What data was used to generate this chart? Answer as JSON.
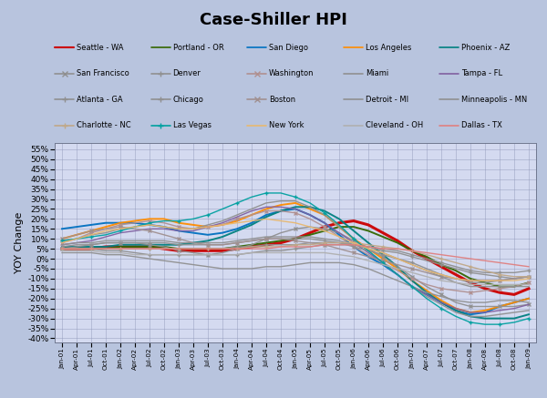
{
  "title": "Case-Shiller HPI",
  "ylabel": "YOY Change",
  "bg_color": "#b8c4de",
  "plot_bg_color": "#d4daf0",
  "x_labels": [
    "Jan-01",
    "Apr-01",
    "Jul-01",
    "Oct-01",
    "Jan-02",
    "Apr-02",
    "Jul-02",
    "Oct-02",
    "Jan-03",
    "Apr-03",
    "Jul-03",
    "Oct-03",
    "Jan-04",
    "Apr-04",
    "Jul-04",
    "Oct-04",
    "Jan-05",
    "Apr-05",
    "Jul-05",
    "Oct-05",
    "Jan-06",
    "Apr-06",
    "Jul-06",
    "Oct-06",
    "Jan-07",
    "Apr-07",
    "Jul-07",
    "Oct-07",
    "Jan-08",
    "Apr-08",
    "Jul-08",
    "Oct-08",
    "Jan-09"
  ],
  "ylim": [
    -42,
    58
  ],
  "cities": {
    "Seattle - WA": {
      "color": "#cc0000",
      "lw": 2.2,
      "ls": "-",
      "marker": null,
      "data": [
        5,
        5,
        5,
        6,
        6,
        6,
        6,
        5,
        4,
        4,
        4,
        4,
        5,
        6,
        7,
        8,
        10,
        13,
        16,
        18,
        19,
        17,
        13,
        9,
        4,
        0,
        -4,
        -8,
        -12,
        -15,
        -17,
        -18,
        -15
      ]
    },
    "Portland - OR": {
      "color": "#336600",
      "lw": 1.4,
      "ls": "-",
      "marker": null,
      "data": [
        5,
        5,
        5,
        5,
        6,
        6,
        6,
        6,
        5,
        5,
        5,
        5,
        6,
        7,
        8,
        9,
        10,
        12,
        14,
        16,
        16,
        14,
        11,
        8,
        4,
        1,
        -3,
        -6,
        -10,
        -12,
        -14,
        -14,
        -12
      ]
    },
    "San Diego": {
      "color": "#0070c0",
      "lw": 1.4,
      "ls": "-",
      "marker": null,
      "data": [
        15,
        16,
        17,
        18,
        18,
        18,
        17,
        16,
        14,
        13,
        12,
        13,
        15,
        18,
        22,
        24,
        25,
        22,
        18,
        12,
        6,
        1,
        -3,
        -8,
        -14,
        -18,
        -22,
        -26,
        -28,
        -27,
        -24,
        -22,
        -20
      ]
    },
    "Los Angeles": {
      "color": "#ff8c00",
      "lw": 1.4,
      "ls": "-",
      "marker": null,
      "data": [
        10,
        12,
        14,
        16,
        18,
        19,
        20,
        20,
        18,
        17,
        16,
        17,
        19,
        22,
        25,
        27,
        28,
        25,
        22,
        16,
        10,
        5,
        0,
        -5,
        -11,
        -16,
        -21,
        -25,
        -27,
        -26,
        -24,
        -22,
        -20
      ]
    },
    "Phoenix - AZ": {
      "color": "#008080",
      "lw": 1.4,
      "ls": "-",
      "marker": null,
      "data": [
        6,
        6,
        6,
        6,
        7,
        7,
        7,
        7,
        7,
        8,
        9,
        11,
        14,
        17,
        21,
        24,
        26,
        26,
        24,
        20,
        14,
        8,
        2,
        -4,
        -11,
        -17,
        -22,
        -26,
        -29,
        -30,
        -30,
        -30,
        -28
      ]
    },
    "San Francisco": {
      "color": "#909090",
      "lw": 1.0,
      "ls": "-",
      "marker": "x",
      "data": [
        5,
        6,
        7,
        8,
        8,
        8,
        7,
        6,
        4,
        3,
        2,
        3,
        5,
        7,
        10,
        13,
        15,
        16,
        15,
        13,
        9,
        5,
        1,
        -4,
        -9,
        -14,
        -18,
        -22,
        -24,
        -24,
        -24,
        -24,
        -23
      ]
    },
    "Denver": {
      "color": "#909090",
      "lw": 1.0,
      "ls": "-",
      "marker": "+",
      "data": [
        5,
        5,
        5,
        4,
        4,
        3,
        2,
        2,
        2,
        2,
        2,
        2,
        2,
        3,
        4,
        4,
        5,
        6,
        7,
        7,
        7,
        6,
        5,
        4,
        2,
        0,
        -2,
        -4,
        -6,
        -7,
        -7,
        -7,
        -6
      ]
    },
    "Washington": {
      "color": "#b09090",
      "lw": 1.0,
      "ls": "-",
      "marker": "x",
      "data": [
        8,
        10,
        13,
        15,
        17,
        18,
        19,
        18,
        16,
        15,
        16,
        17,
        20,
        22,
        24,
        24,
        23,
        20,
        16,
        11,
        6,
        2,
        -2,
        -6,
        -10,
        -13,
        -15,
        -16,
        -17,
        -16,
        -15,
        -14,
        -12
      ]
    },
    "Miami": {
      "color": "#909090",
      "lw": 1.0,
      "ls": "-",
      "marker": null,
      "data": [
        9,
        10,
        12,
        13,
        15,
        16,
        17,
        16,
        15,
        15,
        17,
        19,
        22,
        25,
        28,
        29,
        29,
        26,
        22,
        16,
        10,
        4,
        -2,
        -8,
        -14,
        -19,
        -23,
        -27,
        -29,
        -29,
        -28,
        -27,
        -26
      ]
    },
    "Tampa - FL": {
      "color": "#8060a0",
      "lw": 1.0,
      "ls": "-",
      "marker": null,
      "data": [
        7,
        8,
        9,
        11,
        13,
        14,
        15,
        15,
        14,
        14,
        16,
        18,
        21,
        24,
        26,
        26,
        25,
        22,
        18,
        13,
        8,
        3,
        -2,
        -8,
        -14,
        -18,
        -22,
        -25,
        -27,
        -27,
        -26,
        -25,
        -23
      ]
    },
    "Atlanta - GA": {
      "color": "#909090",
      "lw": 1.0,
      "ls": "-",
      "marker": "+",
      "data": [
        5,
        5,
        5,
        5,
        5,
        5,
        5,
        5,
        5,
        5,
        5,
        5,
        6,
        6,
        7,
        7,
        7,
        8,
        8,
        8,
        7,
        6,
        4,
        3,
        1,
        -1,
        -3,
        -5,
        -7,
        -8,
        -9,
        -10,
        -9
      ]
    },
    "Chicago": {
      "color": "#909090",
      "lw": 1.0,
      "ls": "-",
      "marker": "+",
      "data": [
        6,
        7,
        7,
        8,
        8,
        8,
        8,
        8,
        7,
        7,
        7,
        7,
        8,
        9,
        10,
        10,
        10,
        10,
        9,
        8,
        6,
        4,
        2,
        0,
        -2,
        -5,
        -8,
        -10,
        -12,
        -12,
        -11,
        -10,
        -9
      ]
    },
    "Boston": {
      "color": "#a09090",
      "lw": 1.0,
      "ls": "-",
      "marker": "x",
      "data": [
        10,
        12,
        14,
        15,
        16,
        15,
        14,
        12,
        10,
        8,
        7,
        7,
        8,
        9,
        10,
        10,
        9,
        8,
        7,
        5,
        3,
        1,
        -1,
        -3,
        -5,
        -7,
        -9,
        -10,
        -11,
        -11,
        -11,
        -10,
        -9
      ]
    },
    "Detroit - MI": {
      "color": "#909090",
      "lw": 1.0,
      "ls": "-",
      "marker": null,
      "data": [
        3,
        3,
        3,
        2,
        2,
        1,
        0,
        -1,
        -2,
        -3,
        -4,
        -5,
        -5,
        -5,
        -4,
        -4,
        -3,
        -2,
        -2,
        -2,
        -3,
        -5,
        -8,
        -11,
        -14,
        -17,
        -19,
        -21,
        -22,
        -22,
        -21,
        -21,
        -22
      ]
    },
    "Minneapolis - MN": {
      "color": "#909090",
      "lw": 1.0,
      "ls": "-",
      "marker": null,
      "data": [
        7,
        8,
        8,
        9,
        9,
        9,
        9,
        9,
        8,
        8,
        8,
        8,
        9,
        10,
        11,
        11,
        11,
        11,
        10,
        9,
        7,
        5,
        3,
        0,
        -3,
        -6,
        -9,
        -12,
        -14,
        -14,
        -14,
        -14,
        -14
      ]
    },
    "Charlotte - NC": {
      "color": "#c0a888",
      "lw": 1.0,
      "ls": "-",
      "marker": "+",
      "data": [
        5,
        5,
        5,
        5,
        5,
        5,
        5,
        5,
        5,
        5,
        5,
        5,
        5,
        6,
        6,
        6,
        7,
        7,
        8,
        8,
        8,
        7,
        6,
        5,
        4,
        2,
        0,
        -2,
        -4,
        -6,
        -8,
        -9,
        -9
      ]
    },
    "Las Vegas": {
      "color": "#00a0a0",
      "lw": 1.0,
      "ls": "-",
      "marker": "+",
      "data": [
        9,
        10,
        11,
        12,
        14,
        16,
        18,
        19,
        19,
        20,
        22,
        25,
        28,
        31,
        33,
        33,
        31,
        28,
        23,
        17,
        10,
        4,
        -2,
        -8,
        -14,
        -20,
        -25,
        -29,
        -32,
        -33,
        -33,
        -32,
        -30
      ]
    },
    "New York": {
      "color": "#e8b870",
      "lw": 1.0,
      "ls": "-",
      "marker": null,
      "data": [
        8,
        10,
        12,
        14,
        15,
        16,
        17,
        16,
        15,
        15,
        16,
        17,
        18,
        19,
        20,
        19,
        18,
        16,
        14,
        11,
        8,
        5,
        3,
        0,
        -3,
        -6,
        -8,
        -10,
        -11,
        -11,
        -11,
        -11,
        -10
      ]
    },
    "Cleveland - OH": {
      "color": "#b0b0b0",
      "lw": 1.0,
      "ls": "-",
      "marker": null,
      "data": [
        4,
        4,
        4,
        3,
        3,
        2,
        2,
        2,
        2,
        2,
        2,
        2,
        2,
        3,
        3,
        3,
        3,
        3,
        3,
        2,
        1,
        -1,
        -3,
        -5,
        -7,
        -9,
        -11,
        -12,
        -13,
        -13,
        -13,
        -13,
        -13
      ]
    },
    "Dallas - TX": {
      "color": "#e08080",
      "lw": 1.0,
      "ls": "-",
      "marker": null,
      "data": [
        5,
        5,
        5,
        5,
        5,
        5,
        5,
        5,
        5,
        5,
        5,
        5,
        5,
        5,
        5,
        6,
        6,
        6,
        7,
        7,
        7,
        6,
        5,
        5,
        4,
        3,
        2,
        1,
        0,
        -1,
        -2,
        -3,
        -4
      ]
    }
  },
  "legend_rows": [
    [
      [
        "Seattle - WA",
        "#cc0000",
        "-",
        null
      ],
      [
        "Portland - OR",
        "#336600",
        "-",
        null
      ],
      [
        "San Diego",
        "#0070c0",
        "-",
        null
      ],
      [
        "Los Angeles",
        "#ff8c00",
        "-",
        null
      ],
      [
        "Phoenix - AZ",
        "#008080",
        "-",
        null
      ]
    ],
    [
      [
        "San Francisco",
        "#909090",
        "-",
        "x"
      ],
      [
        "Denver",
        "#909090",
        "-",
        "+"
      ],
      [
        "Washington",
        "#b09090",
        "-",
        "x"
      ],
      [
        "Miami",
        "#909090",
        "-",
        null
      ],
      [
        "Tampa - FL",
        "#8060a0",
        "-",
        null
      ]
    ],
    [
      [
        "Atlanta - GA",
        "#909090",
        "-",
        "+"
      ],
      [
        "Chicago",
        "#909090",
        "-",
        "+"
      ],
      [
        "Boston",
        "#a09090",
        "-",
        "x"
      ],
      [
        "Detroit - MI",
        "#909090",
        "-",
        null
      ],
      [
        "Minneapolis - MN",
        "#909090",
        "-",
        null
      ]
    ],
    [
      [
        "Charlotte - NC",
        "#c0a888",
        "-",
        "+"
      ],
      [
        "Las Vegas",
        "#00a0a0",
        "-",
        "+"
      ],
      [
        "New York",
        "#e8b870",
        "-",
        null
      ],
      [
        "Cleveland - OH",
        "#b0b0b0",
        "-",
        null
      ],
      [
        "Dallas - TX",
        "#e08080",
        "-",
        null
      ]
    ]
  ]
}
